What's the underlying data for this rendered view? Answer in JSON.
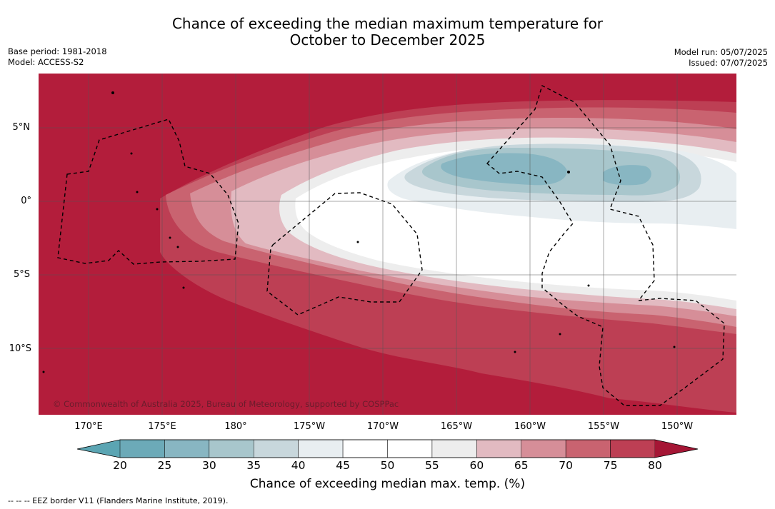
{
  "title": {
    "line1": "Chance of exceeding the median maximum temperature for",
    "line2": "October to December 2025"
  },
  "meta": {
    "base_period": "Base period: 1981-2018",
    "model": "Model: ACCESS-S2",
    "model_run": "Model run: 05/07/2025",
    "issued": "Issued: 07/07/2025"
  },
  "map": {
    "latitude_labels": [
      "5°N",
      "0°",
      "5°S",
      "10°S"
    ],
    "longitude_labels": [
      "170°E",
      "175°E",
      "180°",
      "175°W",
      "170°W",
      "165°W",
      "160°W",
      "155°W",
      "150°W"
    ],
    "copyright": "© Commonwealth of Australia 2025, Bureau of Meteorology, supported by COSPPac",
    "border_style": "dashed",
    "background_color": "#b31d3b"
  },
  "colorbar": {
    "ticks": [
      "20",
      "25",
      "30",
      "35",
      "40",
      "45",
      "50",
      "55",
      "60",
      "65",
      "70",
      "75",
      "80"
    ],
    "colors": [
      "#6caab8",
      "#88b6c2",
      "#a8c6cc",
      "#c8d7dc",
      "#e8eef1",
      "#ffffff",
      "#ffffff",
      "#ededed",
      "#e2bac1",
      "#d68e98",
      "#c96370",
      "#bd3f54"
    ],
    "low_extend_color": "#5ba5b3",
    "high_extend_color": "#a51635",
    "label": "Chance of exceeding median max. temp. (%)"
  },
  "footnote": "--  --  -- EEZ border V11 (Flanders Marine Institute, 2019)."
}
